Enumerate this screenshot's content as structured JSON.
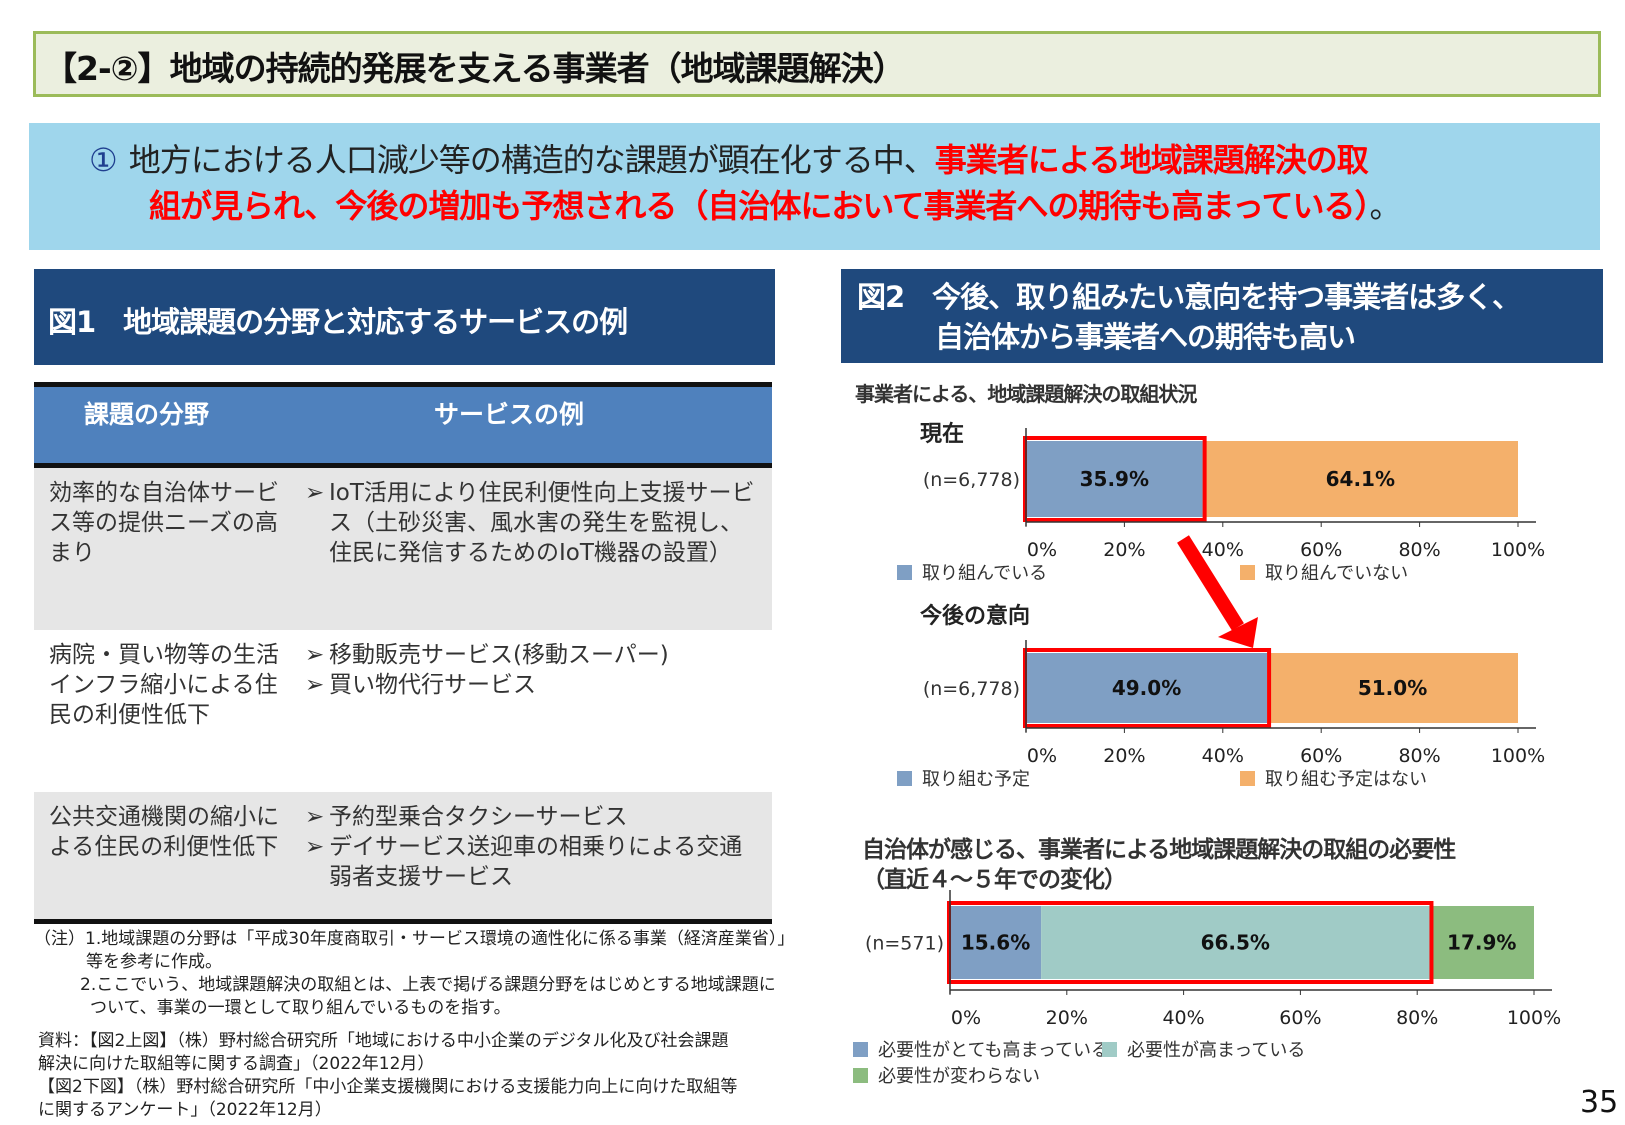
{
  "title": "【2-②】地域の持続的発展を支える事業者（地域課題解決）",
  "lead": {
    "number": "①",
    "text_normal": "地方における人口減少等の構造的な課題が顕在化する中、",
    "text_red_1": "事業者による地域課題解決の取",
    "text_red_2": "組が見られ、今後の増加も予想される（自治体において事業者への期待も高まっている）",
    "text_end": "。"
  },
  "fig1": {
    "title": "図1　地域課題の分野と対応するサービスの例",
    "headers": [
      "課題の分野",
      "サービスの例"
    ],
    "rows": [
      {
        "field": "効率的な自治体サービス等の提供ニーズの高まり",
        "services": [
          "IoT活用により住民利便性向上支援サービス（土砂災害、風水害の発生を監視し、住民に発信するためのIoT機器の設置）"
        ]
      },
      {
        "field": "病院・買い物等の生活インフラ縮小による住民の利便性低下",
        "services": [
          "移動販売サービス(移動スーパー)",
          "買い物代行サービス"
        ]
      },
      {
        "field": "公共交通機関の縮小による住民の利便性低下",
        "services": [
          "予約型乗合タクシーサービス",
          "デイサービス送迎車の相乗りによる交通弱者支援サービス"
        ]
      }
    ],
    "bullet": "➢"
  },
  "fig2": {
    "title_line1": "図2　今後、取り組みたい意向を持つ事業者は多く、",
    "title_line2": "自治体から事業者への期待も高い"
  },
  "notes": {
    "n1": "（注）1.地域課題の分野は「平成30年度商取引・サービス環境の適性化に係る事業（経済産業省）」",
    "n1b": "等を参考に作成。",
    "n2": "2.ここでいう、地域課題解決の取組とは、上表で掲げる課題分野をはじめとする地域課題に",
    "n2b": "ついて、事業の一環として取り組んでいるものを指す。"
  },
  "sources": {
    "s1": "資料：【図2上図】（株）野村総合研究所「地域における中小企業のデジタル化及び社会課題",
    "s1b": "解決に向けた取組等に関する調査」（2022年12月）",
    "s2": "【図2下図】（株）野村総合研究所「中小企業支援機関における支援能力向上に向けた取組等",
    "s2b": "に関するアンケート」（2022年12月）"
  },
  "page_number": "35",
  "chart_data": [
    {
      "type": "bar",
      "orientation": "horizontal-stacked",
      "title": "事業者による、地域課題解決の取組状況",
      "subtitle": "現在",
      "categories": [
        "(n=6,778)"
      ],
      "series": [
        {
          "name": "取り組んでいる",
          "values": [
            35.9
          ],
          "color": "#7f9fc4",
          "label": "35.9%"
        },
        {
          "name": "取り組んでいない",
          "values": [
            64.1
          ],
          "color": "#f4b06b",
          "label": "64.1%"
        }
      ],
      "xlim": [
        0,
        100
      ],
      "xticks": [
        "0%",
        "20%",
        "40%",
        "60%",
        "80%",
        "100%"
      ],
      "highlight": "取り組んでいる",
      "legend": "bottom"
    },
    {
      "type": "bar",
      "orientation": "horizontal-stacked",
      "subtitle": "今後の意向",
      "categories": [
        "(n=6,778)"
      ],
      "series": [
        {
          "name": "取り組む予定",
          "values": [
            49.0
          ],
          "color": "#7f9fc4",
          "label": "49.0%"
        },
        {
          "name": "取り組む予定はない",
          "values": [
            51.0
          ],
          "color": "#f4b06b",
          "label": "51.0%"
        }
      ],
      "xlim": [
        0,
        100
      ],
      "xticks": [
        "0%",
        "20%",
        "40%",
        "60%",
        "80%",
        "100%"
      ],
      "highlight": "取り組む予定",
      "legend": "bottom"
    },
    {
      "type": "bar",
      "orientation": "horizontal-stacked",
      "title": "自治体が感じる、事業者による地域課題解決の取組の必要性",
      "subtitle": "（直近４～５年での変化）",
      "categories": [
        "(n=571)"
      ],
      "series": [
        {
          "name": "必要性がとても高まっている",
          "values": [
            15.6
          ],
          "color": "#7f9fc4",
          "label": "15.6%"
        },
        {
          "name": "必要性が高まっている",
          "values": [
            66.5
          ],
          "color": "#a0cbc6",
          "label": "66.5%"
        },
        {
          "name": "必要性が変わらない",
          "values": [
            17.9
          ],
          "color": "#8cbc7f",
          "label": "17.9%"
        }
      ],
      "xlim": [
        0,
        100
      ],
      "xticks": [
        "0%",
        "20%",
        "40%",
        "60%",
        "80%",
        "100%"
      ],
      "highlight": "必要性がとても高まっている + 必要性が高まっている",
      "legend": "bottom"
    }
  ],
  "colors": {
    "highlight": "#ff0000",
    "header_navy": "#1f497d",
    "table_header": "#4f81bd"
  }
}
